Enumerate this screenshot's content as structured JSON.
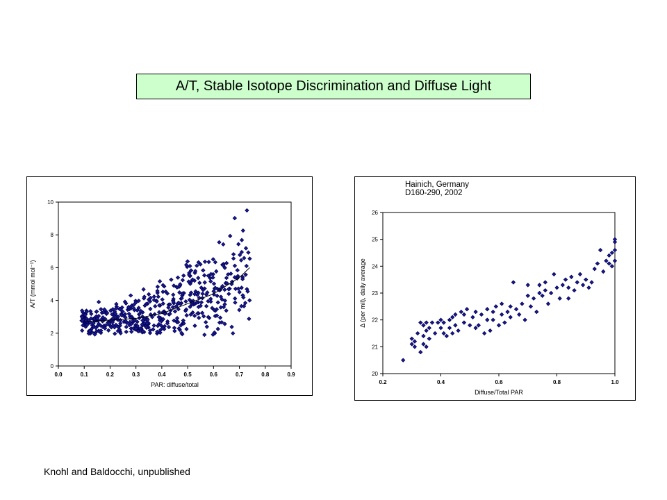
{
  "title": "A/T, Stable Isotope Discrimination and Diffuse Light",
  "credit": "Knohl and Baldocchi, unpublished",
  "colors": {
    "title_bg": "#ccffcc",
    "marker": "#1a1a8c",
    "marker_edge": "#00005a"
  },
  "chart_data": [
    {
      "type": "scatter",
      "title": "",
      "xlabel": "PAR: diffuse/total",
      "ylabel": "A/T (mmol mol⁻¹)",
      "xlim": [
        0.0,
        0.9
      ],
      "ylim": [
        0,
        10
      ],
      "xticks": [
        "0.0",
        "0.1",
        "0.2",
        "0.3",
        "0.4",
        "0.5",
        "0.6",
        "0.7",
        "0.8",
        "0.9"
      ],
      "yticks": [
        "0",
        "2",
        "4",
        "6",
        "8",
        "10"
      ],
      "grid": false,
      "marker": "diamond",
      "trend_line": [
        [
          0.1,
          2.7
        ],
        [
          0.2,
          2.8
        ],
        [
          0.3,
          2.9
        ],
        [
          0.4,
          3.2
        ],
        [
          0.5,
          3.8
        ],
        [
          0.6,
          4.4
        ],
        [
          0.7,
          5.4
        ],
        [
          0.74,
          6.0
        ]
      ],
      "generated_points": {
        "count": 520,
        "x_range": [
          0.09,
          0.74
        ],
        "comment_free": true
      }
    },
    {
      "type": "scatter",
      "subtitle": [
        "Hainich, Germany",
        "D160-290, 2002"
      ],
      "xlabel": "Diffuse/Total PAR",
      "ylabel": "Δ (per mil), daily average",
      "xlim": [
        0.2,
        1.0
      ],
      "ylim": [
        20,
        26
      ],
      "xticks": [
        "0.2",
        "0.4",
        "0.6",
        "0.8",
        "1.0"
      ],
      "yticks": [
        "20",
        "21",
        "22",
        "23",
        "24",
        "25",
        "26"
      ],
      "grid": false,
      "marker": "diamond",
      "points": [
        [
          0.27,
          20.5
        ],
        [
          0.3,
          21.1
        ],
        [
          0.3,
          21.3
        ],
        [
          0.31,
          21.0
        ],
        [
          0.31,
          21.2
        ],
        [
          0.32,
          21.5
        ],
        [
          0.33,
          20.8
        ],
        [
          0.33,
          21.9
        ],
        [
          0.34,
          21.1
        ],
        [
          0.34,
          21.4
        ],
        [
          0.34,
          21.8
        ],
        [
          0.35,
          21.0
        ],
        [
          0.35,
          21.6
        ],
        [
          0.35,
          21.9
        ],
        [
          0.36,
          21.3
        ],
        [
          0.36,
          21.7
        ],
        [
          0.37,
          21.9
        ],
        [
          0.38,
          21.5
        ],
        [
          0.39,
          21.9
        ],
        [
          0.4,
          21.7
        ],
        [
          0.4,
          22.0
        ],
        [
          0.41,
          21.5
        ],
        [
          0.41,
          21.9
        ],
        [
          0.42,
          21.4
        ],
        [
          0.43,
          21.7
        ],
        [
          0.43,
          22.0
        ],
        [
          0.44,
          21.5
        ],
        [
          0.44,
          22.1
        ],
        [
          0.45,
          21.8
        ],
        [
          0.45,
          22.2
        ],
        [
          0.46,
          21.6
        ],
        [
          0.47,
          22.3
        ],
        [
          0.48,
          21.9
        ],
        [
          0.48,
          22.2
        ],
        [
          0.49,
          22.4
        ],
        [
          0.5,
          21.8
        ],
        [
          0.51,
          22.1
        ],
        [
          0.52,
          21.7
        ],
        [
          0.52,
          22.3
        ],
        [
          0.53,
          21.8
        ],
        [
          0.54,
          22.2
        ],
        [
          0.55,
          21.5
        ],
        [
          0.56,
          22.0
        ],
        [
          0.56,
          22.4
        ],
        [
          0.57,
          21.6
        ],
        [
          0.58,
          22.0
        ],
        [
          0.58,
          22.3
        ],
        [
          0.59,
          22.5
        ],
        [
          0.6,
          21.8
        ],
        [
          0.61,
          22.2
        ],
        [
          0.61,
          22.6
        ],
        [
          0.62,
          21.9
        ],
        [
          0.63,
          22.3
        ],
        [
          0.64,
          22.1
        ],
        [
          0.64,
          22.5
        ],
        [
          0.65,
          23.4
        ],
        [
          0.66,
          22.4
        ],
        [
          0.67,
          22.2
        ],
        [
          0.68,
          22.6
        ],
        [
          0.69,
          22.0
        ],
        [
          0.7,
          22.9
        ],
        [
          0.7,
          23.3
        ],
        [
          0.71,
          22.5
        ],
        [
          0.72,
          22.8
        ],
        [
          0.73,
          22.3
        ],
        [
          0.74,
          23.0
        ],
        [
          0.74,
          23.3
        ],
        [
          0.75,
          22.9
        ],
        [
          0.76,
          23.1
        ],
        [
          0.76,
          23.4
        ],
        [
          0.77,
          22.6
        ],
        [
          0.78,
          23.0
        ],
        [
          0.79,
          23.7
        ],
        [
          0.8,
          23.2
        ],
        [
          0.81,
          22.8
        ],
        [
          0.82,
          23.3
        ],
        [
          0.83,
          23.5
        ],
        [
          0.84,
          22.8
        ],
        [
          0.84,
          23.2
        ],
        [
          0.85,
          23.6
        ],
        [
          0.86,
          23.1
        ],
        [
          0.87,
          23.4
        ],
        [
          0.88,
          23.7
        ],
        [
          0.89,
          23.3
        ],
        [
          0.9,
          23.5
        ],
        [
          0.91,
          23.2
        ],
        [
          0.92,
          23.4
        ],
        [
          0.93,
          23.9
        ],
        [
          0.94,
          24.1
        ],
        [
          0.95,
          24.6
        ],
        [
          0.96,
          23.8
        ],
        [
          0.97,
          24.2
        ],
        [
          0.98,
          24.1
        ],
        [
          0.98,
          24.4
        ],
        [
          0.99,
          24.0
        ],
        [
          0.99,
          24.5
        ],
        [
          1.0,
          24.2
        ],
        [
          1.0,
          24.6
        ],
        [
          1.0,
          24.9
        ],
        [
          1.0,
          25.0
        ]
      ]
    }
  ]
}
